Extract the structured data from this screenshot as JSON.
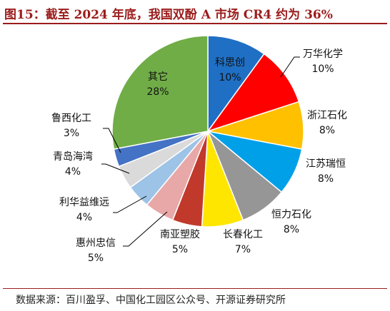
{
  "title": "图15：截至 2024 年底，我国双酚 A 市场 CR4 约为 36%",
  "source": "数据来源：百川盈孚、中国化工园区公众号、开源证券研究所",
  "chart_data": {
    "type": "pie",
    "title": "",
    "slices": [
      {
        "label": "科思创",
        "value": 10,
        "value_label": "10%",
        "color": "#1f6fc5"
      },
      {
        "label": "万华化学",
        "value": 10,
        "value_label": "10%",
        "color": "#ff0000"
      },
      {
        "label": "浙江石化",
        "value": 8,
        "value_label": "8%",
        "color": "#ffc000"
      },
      {
        "label": "江苏瑞恒",
        "value": 8,
        "value_label": "8%",
        "color": "#00a0e9"
      },
      {
        "label": "恒力石化",
        "value": 8,
        "value_label": "8%",
        "color": "#969696"
      },
      {
        "label": "长春化工",
        "value": 7,
        "value_label": "7%",
        "color": "#ffe600"
      },
      {
        "label": "南亚塑胶",
        "value": 5,
        "value_label": "5%",
        "color": "#c0392b"
      },
      {
        "label": "惠州忠信",
        "value": 5,
        "value_label": "5%",
        "color": "#e8a8a8"
      },
      {
        "label": "利华益维远",
        "value": 4,
        "value_label": "4%",
        "color": "#9dc3e6"
      },
      {
        "label": "青岛海湾",
        "value": 4,
        "value_label": "4%",
        "color": "#dadada"
      },
      {
        "label": "鲁西化工",
        "value": 3,
        "value_label": "3%",
        "color": "#4472c4"
      },
      {
        "label": "其它",
        "value": 28,
        "value_label": "28%",
        "color": "#70ad47"
      }
    ]
  }
}
